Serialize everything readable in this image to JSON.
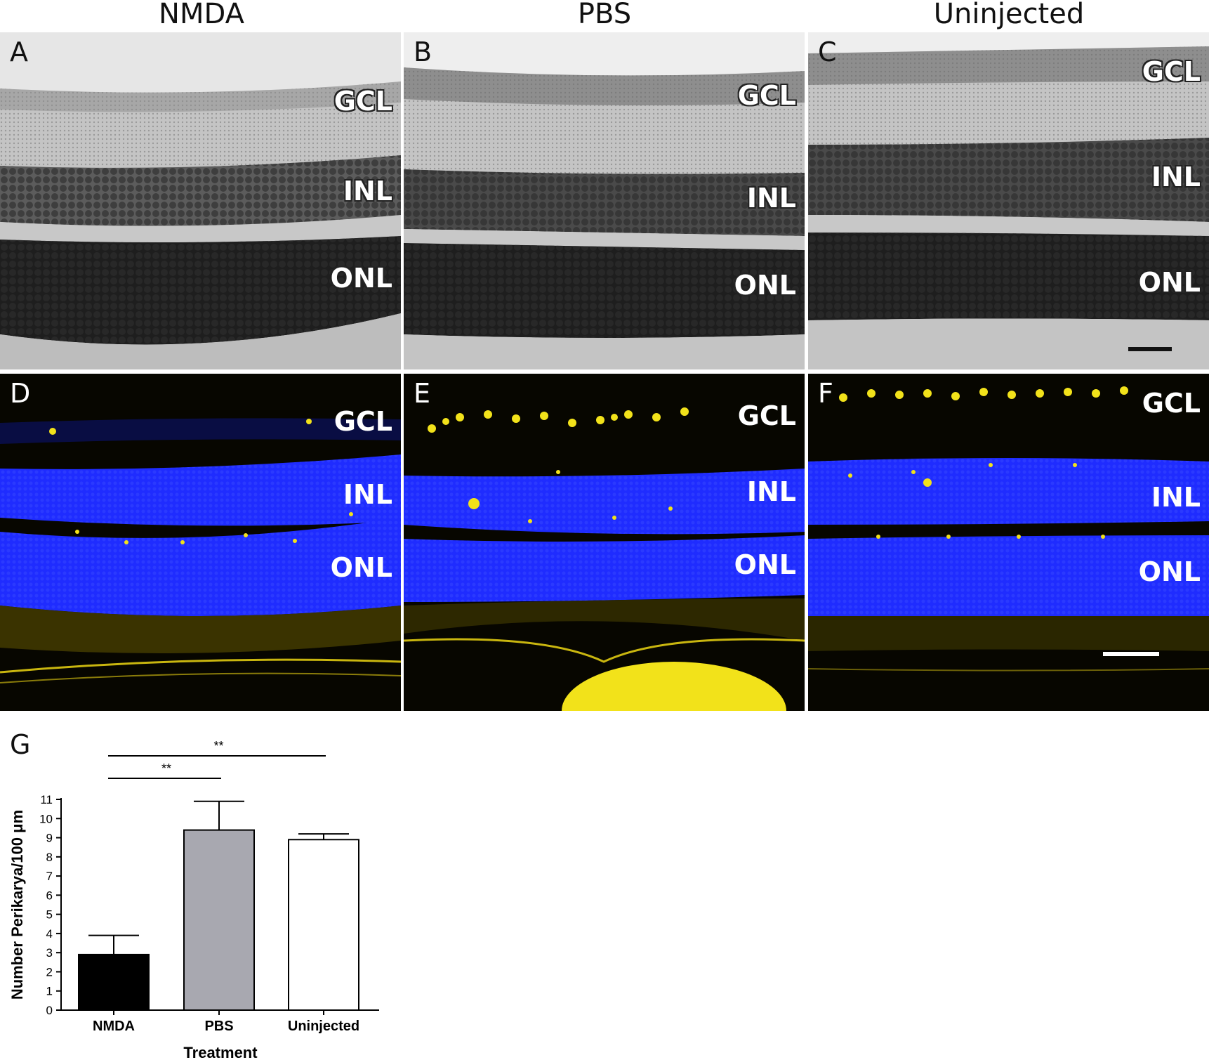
{
  "columns": [
    "NMDA",
    "PBS",
    "Uninjected"
  ],
  "histology_panels": [
    {
      "label": "A",
      "layers": {
        "gcl": "GCL",
        "inl": "INL",
        "onl": "ONL"
      }
    },
    {
      "label": "B",
      "layers": {
        "gcl": "GCL",
        "inl": "INL",
        "onl": "ONL"
      }
    },
    {
      "label": "C",
      "layers": {
        "gcl": "GCL",
        "inl": "INL",
        "onl": "ONL"
      }
    }
  ],
  "fluorescence_panels": [
    {
      "label": "D",
      "layers": {
        "gcl": "GCL",
        "inl": "INL",
        "onl": "ONL"
      }
    },
    {
      "label": "E",
      "layers": {
        "gcl": "GCL",
        "inl": "INL",
        "onl": "ONL"
      }
    },
    {
      "label": "F",
      "layers": {
        "gcl": "GCL",
        "inl": "INL",
        "onl": "ONL"
      }
    }
  ],
  "colors": {
    "nuclei_stain": "#1f2cff",
    "marker_stain": "#f2e21a",
    "bar_nmda": "#000000",
    "bar_pbs": "#a8a8b0",
    "bar_uninjected": "#ffffff"
  },
  "chart_label": "G",
  "chart_data": {
    "type": "bar",
    "categories": [
      "NMDA",
      "PBS",
      "Uninjected"
    ],
    "values": [
      2.9,
      9.4,
      8.9
    ],
    "error": [
      1.0,
      1.5,
      0.3
    ],
    "xlabel": "Treatment",
    "ylabel": "Number Perikarya/100 μm",
    "ylim": [
      0,
      11
    ],
    "yticks": [
      0,
      1,
      2,
      3,
      4,
      5,
      6,
      7,
      8,
      9,
      10,
      11
    ],
    "significance": [
      {
        "from": "NMDA",
        "to": "PBS",
        "label": "**"
      },
      {
        "from": "NMDA",
        "to": "Uninjected",
        "label": "**"
      }
    ]
  }
}
